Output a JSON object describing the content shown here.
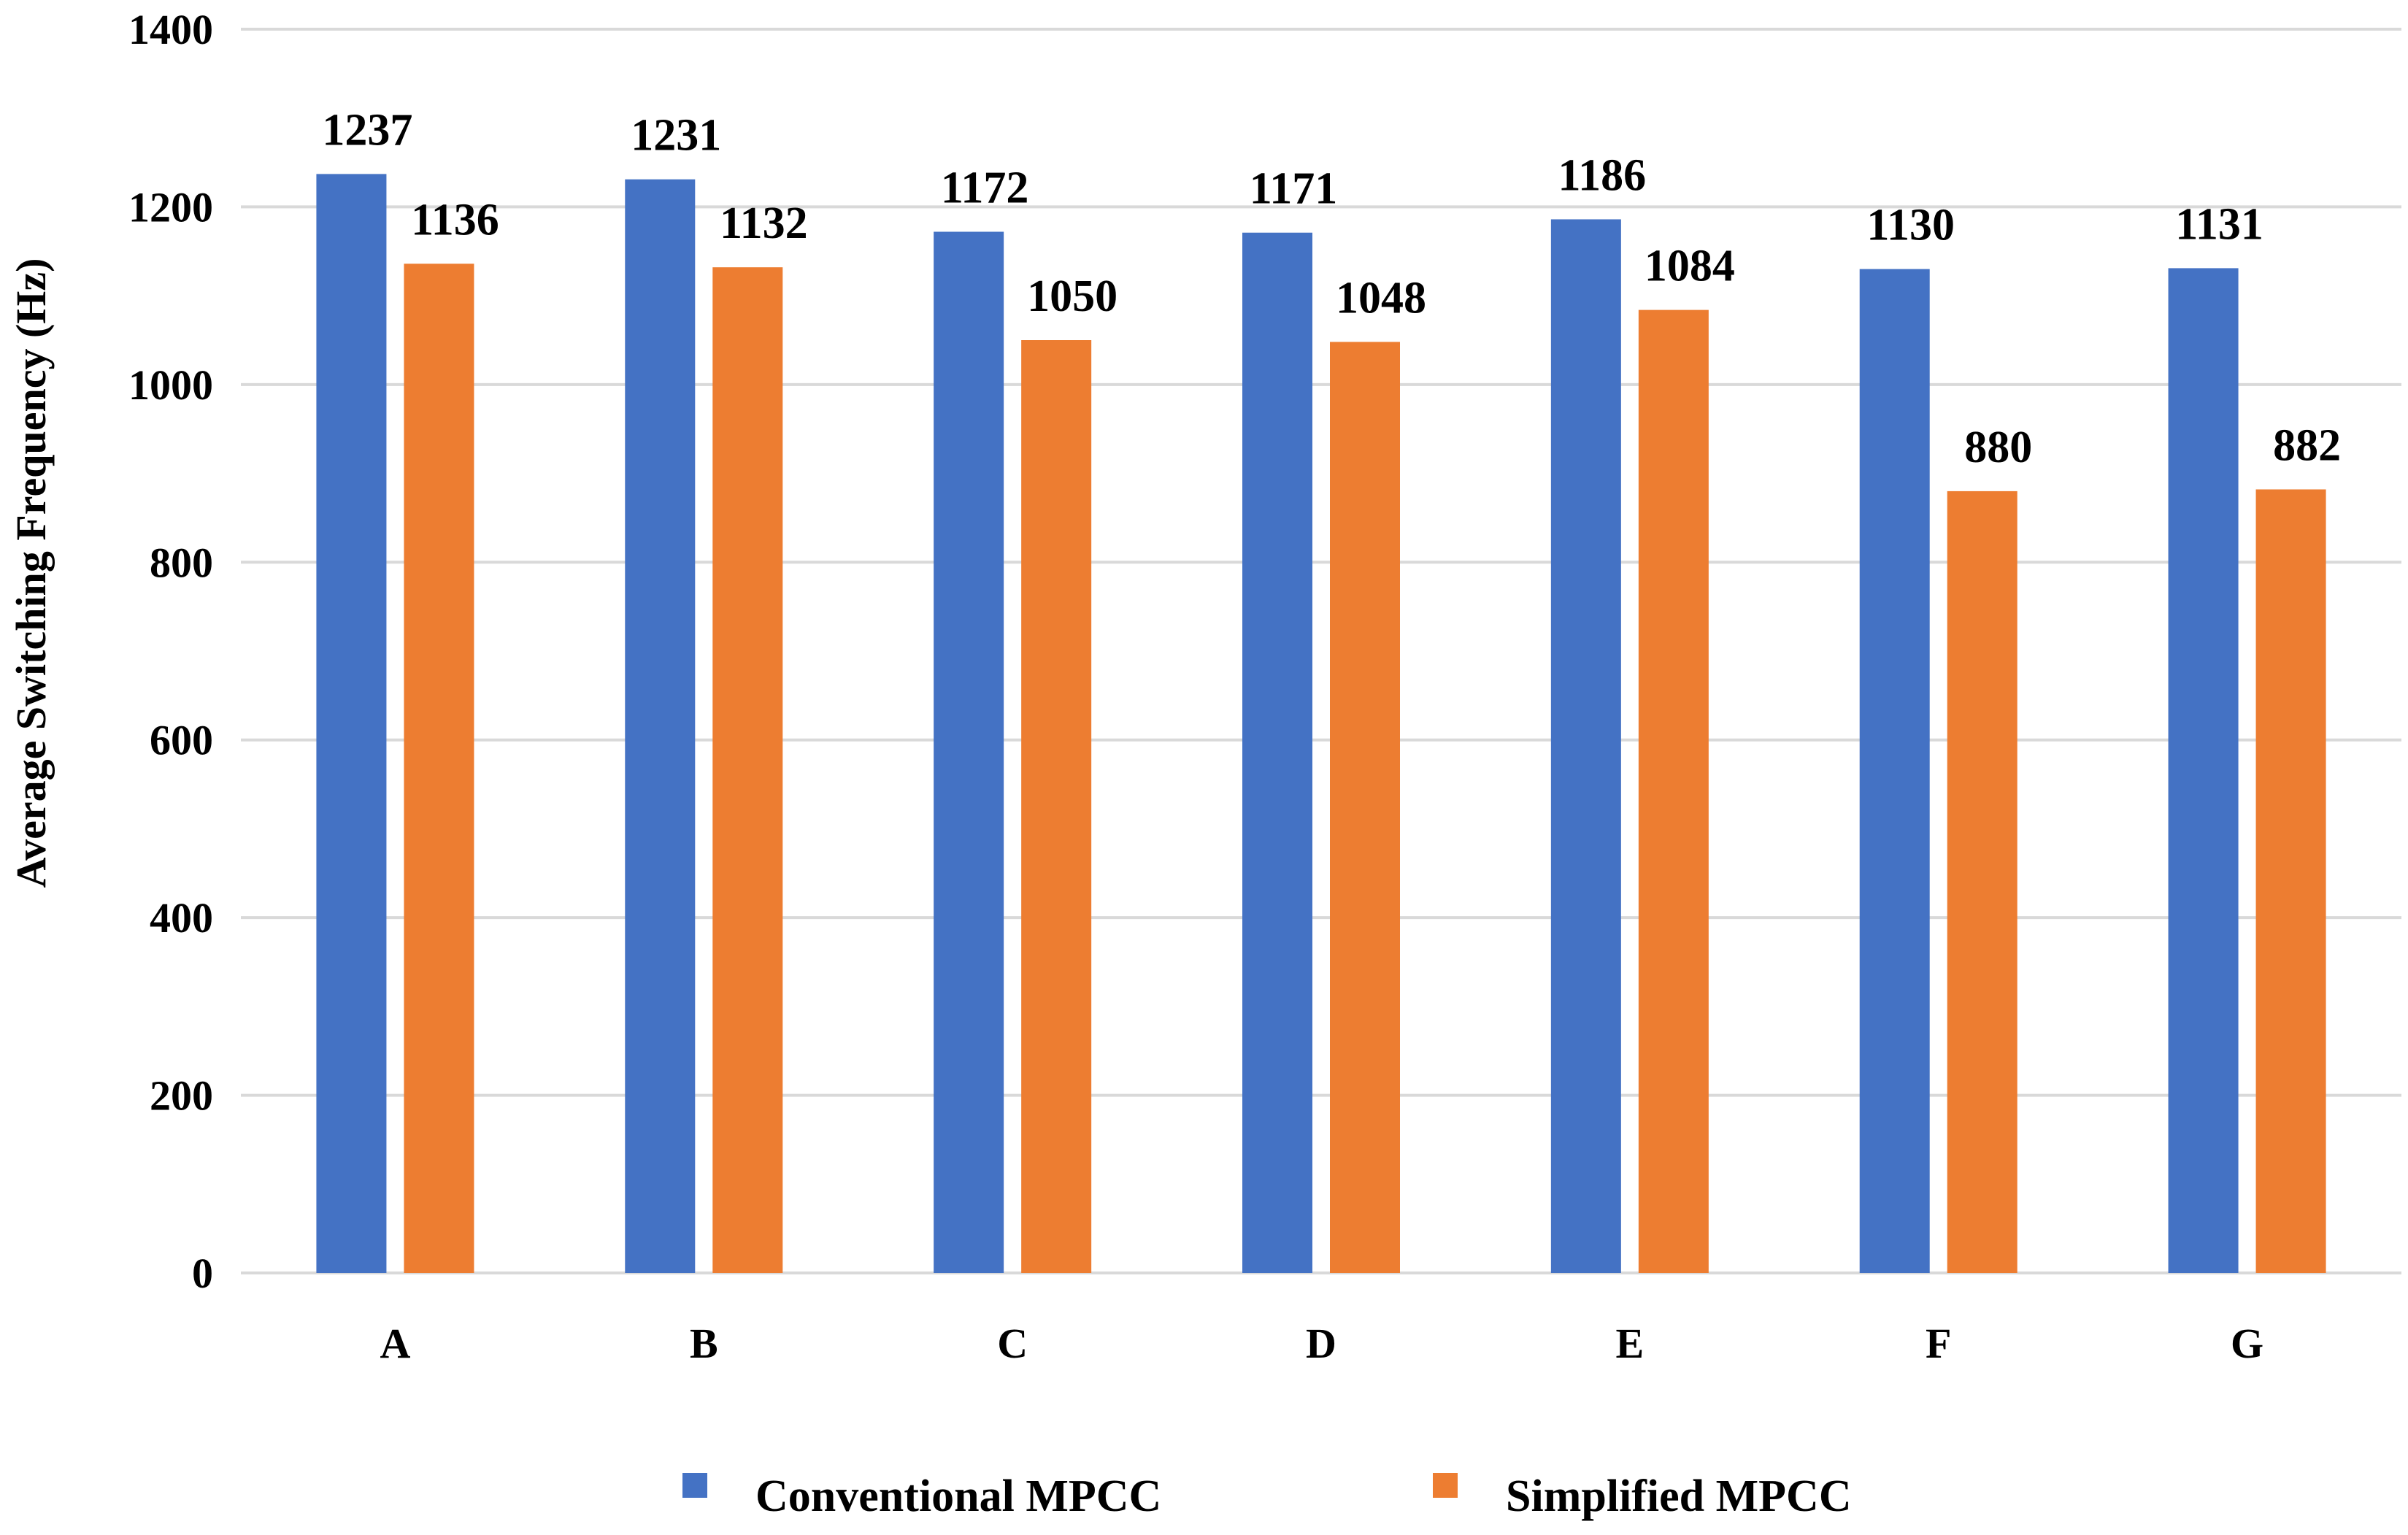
{
  "chart_data": {
    "type": "bar",
    "title": "",
    "xlabel": "",
    "ylabel": "Average Switching Frequency (Hz)",
    "ylim": [
      0,
      1400
    ],
    "yticks": [
      0,
      200,
      400,
      600,
      800,
      1000,
      1200,
      1400
    ],
    "grid": true,
    "legend_position": "bottom",
    "categories": [
      "A",
      "B",
      "C",
      "D",
      "E",
      "F",
      "G"
    ],
    "series": [
      {
        "name": "Conventional MPCC",
        "color": "#4472c4",
        "values": [
          1237,
          1231,
          1172,
          1171,
          1186,
          1130,
          1131
        ]
      },
      {
        "name": "Simplified MPCC",
        "color": "#ed7d31",
        "values": [
          1136,
          1132,
          1050,
          1048,
          1084,
          880,
          882
        ]
      }
    ]
  }
}
